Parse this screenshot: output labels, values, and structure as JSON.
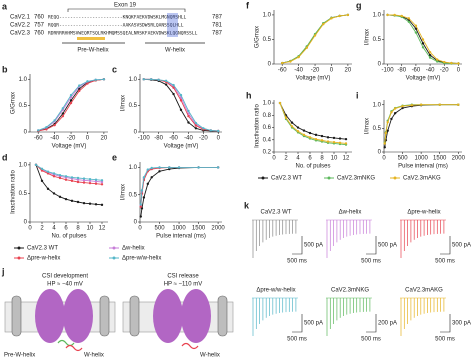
{
  "panel_a": {
    "panel": "a",
    "exon": "Exon 19",
    "rows": [
      {
        "name": "CaV2.1",
        "start": "760",
        "seq": "REQQ-----------------------KNQKFAEKVDWSKLMGNQRSHLL",
        "end": "787"
      },
      {
        "name": "CaV2.2",
        "start": "757",
        "seq": "RQQR-----------------------AAKASVSDWSRLQANSSQLHLL",
        "end": "781"
      },
      {
        "name": "CaV2.3",
        "start": "760",
        "seq": "RDRRRRHHMSVWEQRTSQLRKHMQMSSQEALNRSKFAEKVDWSKLQGNQRSSLL",
        "end": "787"
      }
    ],
    "pre_label": "Pre-W-helix",
    "w_label": "W-helix"
  },
  "chart_data": [
    {
      "type": "line",
      "panel": "b",
      "xlabel": "Voltage (mV)",
      "ylabel": "G/Gmax",
      "x": [
        -60,
        -50,
        -40,
        -30,
        -20,
        -10,
        0,
        10,
        20
      ],
      "series": [
        {
          "color": "#1a1a1a",
          "values": [
            0.02,
            0.06,
            0.15,
            0.35,
            0.6,
            0.82,
            0.94,
            0.98,
            1.0
          ]
        },
        {
          "color": "#c77dd8",
          "values": [
            0.03,
            0.08,
            0.2,
            0.42,
            0.66,
            0.86,
            0.95,
            0.99,
            1.0
          ]
        },
        {
          "color": "#e8424f",
          "values": [
            0.02,
            0.05,
            0.13,
            0.3,
            0.55,
            0.78,
            0.92,
            0.98,
            1.0
          ]
        },
        {
          "color": "#55b7c8",
          "values": [
            0.03,
            0.09,
            0.22,
            0.45,
            0.7,
            0.88,
            0.96,
            0.99,
            1.0
          ]
        }
      ],
      "xlim": [
        -70,
        25
      ],
      "xticks": [
        -60,
        -40,
        -20,
        0,
        20
      ],
      "ylim": [
        0,
        1.1
      ],
      "yticks": [
        0,
        0.5,
        {
          "value": 1,
          "label": "1.0"
        }
      ]
    },
    {
      "type": "line",
      "panel": "c",
      "xlabel": "Voltage (mV)",
      "ylabel": "I/Imax",
      "x": [
        -100,
        -90,
        -80,
        -70,
        -60,
        -50,
        -40,
        -30,
        -20,
        -10,
        0
      ],
      "series": [
        {
          "color": "#1a1a1a",
          "values": [
            1.0,
            0.99,
            0.97,
            0.9,
            0.72,
            0.42,
            0.18,
            0.07,
            0.03,
            0.02,
            0.01
          ]
        },
        {
          "color": "#c77dd8",
          "values": [
            1.0,
            1.0,
            0.99,
            0.96,
            0.87,
            0.65,
            0.35,
            0.14,
            0.06,
            0.03,
            0.02
          ]
        },
        {
          "color": "#e8424f",
          "values": [
            1.0,
            1.0,
            0.99,
            0.95,
            0.84,
            0.6,
            0.3,
            0.12,
            0.05,
            0.03,
            0.02
          ]
        },
        {
          "color": "#55b7c8",
          "values": [
            1.0,
            1.0,
            0.99,
            0.97,
            0.89,
            0.7,
            0.4,
            0.17,
            0.07,
            0.03,
            0.02
          ]
        }
      ],
      "xlim": [
        -105,
        5
      ],
      "xticks": [
        -100,
        -80,
        -60,
        -40,
        -20,
        0
      ],
      "ylim": [
        0,
        1.1
      ],
      "yticks": [
        0,
        0.5,
        {
          "value": 1,
          "label": "1.0"
        }
      ]
    },
    {
      "type": "line",
      "panel": "d",
      "xlabel": "No. of pulses",
      "ylabel": "Inactivation ratio",
      "x": [
        1,
        2,
        3,
        4,
        5,
        6,
        7,
        8,
        9,
        10,
        11,
        12
      ],
      "series": [
        {
          "name": "CaV2.3 WT",
          "color": "#1a1a1a",
          "values": [
            1,
            0.72,
            0.58,
            0.5,
            0.44,
            0.4,
            0.37,
            0.35,
            0.33,
            0.32,
            0.31,
            0.3
          ]
        },
        {
          "name": "Δw-helix",
          "color": "#c77dd8",
          "values": [
            1,
            0.92,
            0.87,
            0.83,
            0.8,
            0.78,
            0.76,
            0.74,
            0.73,
            0.72,
            0.71,
            0.7
          ]
        },
        {
          "name": "Δpre-w-helix",
          "color": "#e8424f",
          "values": [
            1,
            0.9,
            0.85,
            0.8,
            0.77,
            0.74,
            0.72,
            0.7,
            0.69,
            0.68,
            0.67,
            0.66
          ]
        },
        {
          "name": "Δpre-w/w-helix",
          "color": "#55b7c8",
          "values": [
            1,
            0.93,
            0.88,
            0.85,
            0.82,
            0.8,
            0.78,
            0.77,
            0.76,
            0.75,
            0.74,
            0.73
          ]
        }
      ],
      "legend": "below",
      "xlim": [
        0,
        13
      ],
      "xticks": [
        0,
        2,
        4,
        6,
        8,
        10,
        12
      ],
      "ylim": [
        0,
        1.05
      ],
      "yticks": [
        0,
        0.5,
        {
          "value": 1,
          "label": "1.0"
        }
      ]
    },
    {
      "type": "line",
      "panel": "e",
      "xlabel": "Pulse interval (ms)",
      "ylabel": "I/Imax",
      "x": [
        20,
        50,
        100,
        200,
        300,
        500,
        750,
        1000,
        1500,
        2000
      ],
      "series": [
        {
          "color": "#1a1a1a",
          "values": [
            0.1,
            0.25,
            0.45,
            0.7,
            0.82,
            0.93,
            0.97,
            0.99,
            1,
            1
          ]
        },
        {
          "color": "#c77dd8",
          "values": [
            0.3,
            0.55,
            0.8,
            0.95,
            0.98,
            1,
            1,
            1,
            1,
            1
          ]
        },
        {
          "color": "#e8424f",
          "values": [
            0.28,
            0.52,
            0.77,
            0.93,
            0.97,
            0.99,
            1,
            1,
            1,
            1
          ]
        },
        {
          "color": "#55b7c8",
          "values": [
            0.32,
            0.58,
            0.82,
            0.96,
            0.99,
            1,
            1,
            1,
            1,
            1
          ]
        }
      ],
      "xlim": [
        0,
        2100
      ],
      "xticks": [
        0,
        500,
        1000,
        1500,
        2000
      ],
      "ylim": [
        0,
        1.1
      ],
      "yticks": [
        0,
        0.5,
        {
          "value": 1,
          "label": "1.0"
        }
      ]
    },
    {
      "type": "line",
      "panel": "f",
      "xlabel": "Voltage (mV)",
      "ylabel": "G/Gmax",
      "x": [
        -60,
        -50,
        -40,
        -30,
        -20,
        -10,
        0,
        10,
        20
      ],
      "series": [
        {
          "color": "#1a1a1a",
          "values": [
            0.02,
            0.06,
            0.15,
            0.35,
            0.6,
            0.82,
            0.94,
            0.98,
            1.0
          ]
        },
        {
          "color": "#5cb85c",
          "values": [
            0.02,
            0.06,
            0.16,
            0.36,
            0.61,
            0.83,
            0.94,
            0.98,
            1.0
          ]
        },
        {
          "color": "#e6b422",
          "values": [
            0.02,
            0.05,
            0.14,
            0.33,
            0.58,
            0.81,
            0.93,
            0.98,
            1.0
          ]
        }
      ],
      "xlim": [
        -70,
        25
      ],
      "xticks": [
        -60,
        -40,
        -20,
        0,
        20
      ],
      "ylim": [
        0,
        1.1
      ],
      "yticks": [
        0,
        0.5,
        {
          "value": 1,
          "label": "1.0"
        }
      ]
    },
    {
      "type": "line",
      "panel": "g",
      "xlabel": "Voltage (mV)",
      "ylabel": "I/Imax",
      "x": [
        -100,
        -90,
        -80,
        -70,
        -60,
        -50,
        -40,
        -30,
        -20,
        -10,
        0
      ],
      "series": [
        {
          "color": "#1a1a1a",
          "values": [
            1.0,
            0.99,
            0.97,
            0.9,
            0.72,
            0.42,
            0.18,
            0.07,
            0.03,
            0.02,
            0.01
          ]
        },
        {
          "color": "#5cb85c",
          "values": [
            1.0,
            0.99,
            0.96,
            0.86,
            0.64,
            0.34,
            0.13,
            0.05,
            0.02,
            0.01,
            0.01
          ]
        },
        {
          "color": "#e6b422",
          "values": [
            1.0,
            1.0,
            0.98,
            0.93,
            0.78,
            0.5,
            0.24,
            0.09,
            0.04,
            0.02,
            0.01
          ]
        }
      ],
      "xlim": [
        -105,
        5
      ],
      "xticks": [
        -100,
        -80,
        -60,
        -40,
        -20,
        0
      ],
      "ylim": [
        0,
        1.1
      ],
      "yticks": [
        0,
        0.5,
        {
          "value": 1,
          "label": "1.0"
        }
      ]
    },
    {
      "type": "line",
      "panel": "h",
      "xlabel": "No. of pulses",
      "ylabel": "Inactivation ratio",
      "x": [
        1,
        2,
        3,
        4,
        5,
        6,
        7,
        8,
        9,
        10,
        11,
        12
      ],
      "series": [
        {
          "name": "CaV2.3 WT",
          "color": "#1a1a1a",
          "values": [
            1,
            0.8,
            0.68,
            0.6,
            0.55,
            0.51,
            0.48,
            0.46,
            0.44,
            0.43,
            0.42,
            0.41
          ]
        },
        {
          "name": "CaV2.3mNKG",
          "color": "#5cb85c",
          "values": [
            1,
            0.74,
            0.6,
            0.52,
            0.46,
            0.42,
            0.39,
            0.37,
            0.35,
            0.34,
            0.33,
            0.32
          ]
        },
        {
          "name": "CaV2.3mAKG",
          "color": "#e6b422",
          "values": [
            1,
            0.76,
            0.62,
            0.54,
            0.48,
            0.44,
            0.41,
            0.39,
            0.37,
            0.36,
            0.35,
            0.34
          ]
        }
      ],
      "legend": "below",
      "xlim": [
        0,
        13
      ],
      "xticks": [
        0,
        2,
        4,
        6,
        8,
        10,
        12
      ],
      "ylim": [
        0.2,
        1.05
      ],
      "yticks": [
        0.2,
        0.4,
        0.6,
        0.8,
        {
          "value": 1,
          "label": "1.0"
        }
      ]
    },
    {
      "type": "line",
      "panel": "i",
      "xlabel": "Pulse interval (ms)",
      "ylabel": "I/Imax",
      "x": [
        20,
        50,
        100,
        200,
        300,
        500,
        750,
        1000,
        1500,
        2000
      ],
      "series": [
        {
          "color": "#1a1a1a",
          "values": [
            0.1,
            0.25,
            0.45,
            0.7,
            0.82,
            0.93,
            0.97,
            0.99,
            1,
            1
          ]
        },
        {
          "color": "#5cb85c",
          "values": [
            0.2,
            0.42,
            0.66,
            0.86,
            0.93,
            0.98,
            1,
            1,
            1,
            1
          ]
        },
        {
          "color": "#e6b422",
          "values": [
            0.18,
            0.4,
            0.63,
            0.84,
            0.92,
            0.97,
            0.99,
            1,
            1,
            1
          ]
        }
      ],
      "xlim": [
        0,
        2100
      ],
      "xticks": [
        0,
        500,
        1000,
        1500,
        2000
      ],
      "ylim": [
        0,
        1.1
      ],
      "yticks": [
        0,
        0.5,
        {
          "value": 1,
          "label": "1.0"
        }
      ]
    }
  ],
  "panel_j": {
    "panel": "j",
    "left_title": "CSI development",
    "left_hp": "HP ≈ −40 mV",
    "right_title": "CSI release",
    "right_hp": "HP ≈ −110 mV",
    "pre_label": "Pre-W-helix",
    "w_label": "W-helix",
    "w_label_right": "W-helix"
  },
  "panel_k": {
    "panel": "k",
    "groups": [
      {
        "label": "CaV2.3 WT",
        "color": "#888888",
        "amp": "500 pA",
        "time": "500 ms"
      },
      {
        "label": "Δw-helix",
        "color": "#c77dd8",
        "amp": "500 pA",
        "time": "500 ms"
      },
      {
        "label": "Δpre-w-helix",
        "color": "#e8424f",
        "amp": "500 pA",
        "time": "500 ms"
      },
      {
        "label": "Δpre-w/w-helix",
        "color": "#55b7c8",
        "amp": "500 pA",
        "time": "500 ms"
      },
      {
        "label": "CaV2.3mNKG",
        "color": "#5cb85c",
        "amp": "200 pA",
        "time": "500 ms"
      },
      {
        "label": "CaV2.3mAKG",
        "color": "#e6b422",
        "amp": "300 pA",
        "time": "500 ms"
      }
    ]
  }
}
